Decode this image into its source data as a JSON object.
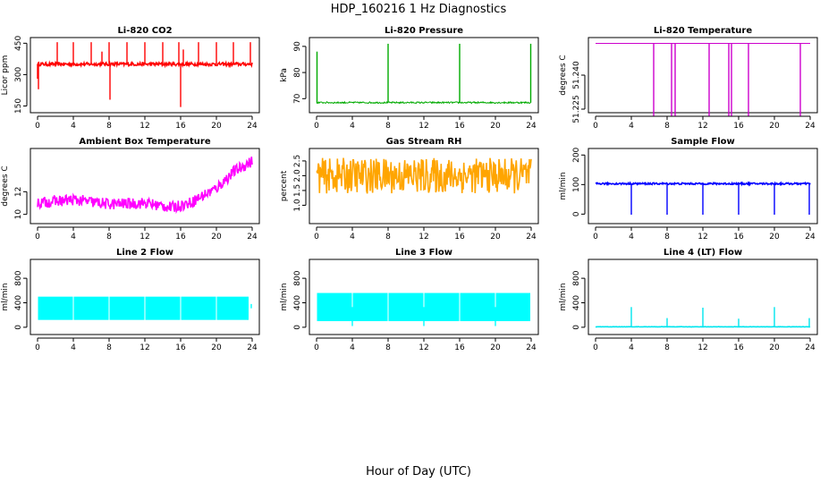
{
  "figure": {
    "title": "HDP_160216  1 Hz Diagnostics",
    "xlabel": "Hour of Day (UTC)"
  },
  "chart_data": [
    {
      "type": "line",
      "title": "Li-820 CO2",
      "ylabel": "Licor ppm",
      "color": "#ff0000",
      "xlim": [
        0,
        24
      ],
      "ylim": [
        135,
        460
      ],
      "xticks": [
        "0",
        "4",
        "8",
        "12",
        "16",
        "20",
        "24"
      ],
      "yticks": [
        "150",
        "300",
        "450"
      ],
      "baseline": 350,
      "noise": 8,
      "segments": [
        [
          0,
          24
        ]
      ],
      "spikes": [
        {
          "x": 0.0,
          "y": 280
        },
        {
          "x": 0.1,
          "y": 230
        },
        {
          "x": 2.2,
          "y": 455
        },
        {
          "x": 4.0,
          "y": 455
        },
        {
          "x": 6.0,
          "y": 455
        },
        {
          "x": 7.2,
          "y": 410
        },
        {
          "x": 8.0,
          "y": 455
        },
        {
          "x": 8.1,
          "y": 180
        },
        {
          "x": 10.0,
          "y": 455
        },
        {
          "x": 12.0,
          "y": 455
        },
        {
          "x": 14.0,
          "y": 455
        },
        {
          "x": 15.8,
          "y": 455
        },
        {
          "x": 16.0,
          "y": 145
        },
        {
          "x": 16.3,
          "y": 420
        },
        {
          "x": 18.0,
          "y": 455
        },
        {
          "x": 20.0,
          "y": 455
        },
        {
          "x": 21.9,
          "y": 455
        },
        {
          "x": 23.8,
          "y": 455
        }
      ]
    },
    {
      "type": "line",
      "title": "Li-820 Pressure",
      "ylabel": "kPa",
      "color": "#00aa00",
      "xlim": [
        0,
        24
      ],
      "ylim": [
        66,
        92
      ],
      "xticks": [
        "0",
        "4",
        "8",
        "12",
        "16",
        "20",
        "24"
      ],
      "yticks": [
        "70",
        "80",
        "90"
      ],
      "baseline": 68.5,
      "noise": 0.3,
      "segments": [
        [
          0,
          24
        ]
      ],
      "spikes": [
        {
          "x": 0.05,
          "y": 88
        },
        {
          "x": 8.0,
          "y": 91
        },
        {
          "x": 16.0,
          "y": 91
        },
        {
          "x": 23.95,
          "y": 91
        }
      ]
    },
    {
      "type": "line",
      "title": "Li-820 Temperature",
      "ylabel": "degrees C",
      "color": "#cc00cc",
      "xlim": [
        0,
        24
      ],
      "ylim": [
        51.225,
        51.255
      ],
      "xticks": [
        "0",
        "4",
        "8",
        "12",
        "16",
        "20",
        "24"
      ],
      "yticks": [
        "51.225",
        "51.240"
      ],
      "baseline": 51.254,
      "noise": 0,
      "segments": [
        [
          0,
          24
        ]
      ],
      "spikes": [
        {
          "x": 6.5,
          "y": 51.222
        },
        {
          "x": 8.5,
          "y": 51.222
        },
        {
          "x": 8.9,
          "y": 51.222
        },
        {
          "x": 12.7,
          "y": 51.222
        },
        {
          "x": 14.9,
          "y": 51.222
        },
        {
          "x": 15.2,
          "y": 51.222
        },
        {
          "x": 17.1,
          "y": 51.222
        },
        {
          "x": 22.9,
          "y": 51.222
        }
      ]
    },
    {
      "type": "line",
      "title": "Ambient Box Temperature",
      "ylabel": "degrees C",
      "color": "#ff00ff",
      "xlim": [
        0,
        24
      ],
      "ylim": [
        9.5,
        15.5
      ],
      "xticks": [
        "0",
        "4",
        "8",
        "12",
        "16",
        "20",
        "24"
      ],
      "yticks": [
        "10",
        "12"
      ],
      "noise": 0.5,
      "segments": [
        [
          0,
          24
        ]
      ],
      "trend": [
        [
          0,
          11.0
        ],
        [
          4,
          11.3
        ],
        [
          8,
          10.9
        ],
        [
          12,
          11.0
        ],
        [
          15,
          10.6
        ],
        [
          17,
          11.0
        ],
        [
          20,
          12.3
        ],
        [
          22,
          13.8
        ],
        [
          24,
          14.7
        ]
      ]
    },
    {
      "type": "line",
      "title": "Gas Stream RH",
      "ylabel": "percent",
      "color": "#ffa500",
      "xlim": [
        0,
        24
      ],
      "ylim": [
        0.5,
        2.8
      ],
      "xticks": [
        "0",
        "4",
        "8",
        "12",
        "16",
        "20",
        "24"
      ],
      "yticks": [
        "1.0",
        "1.5",
        "2.0",
        "2.5"
      ],
      "baseline": 2.0,
      "noise": 0.6,
      "segments": [
        [
          0,
          24
        ]
      ],
      "spikes": []
    },
    {
      "type": "line",
      "title": "Sample Flow",
      "ylabel": "ml/min",
      "color": "#0000ff",
      "xlim": [
        0,
        24
      ],
      "ylim": [
        -20,
        210
      ],
      "xticks": [
        "0",
        "4",
        "8",
        "12",
        "16",
        "20",
        "24"
      ],
      "yticks": [
        "0",
        "100",
        "200"
      ],
      "baseline": 103,
      "noise": 3,
      "segments": [
        [
          0,
          24
        ]
      ],
      "spikes": [
        {
          "x": 4.0,
          "y": -2
        },
        {
          "x": 8.0,
          "y": -2
        },
        {
          "x": 12.0,
          "y": -2
        },
        {
          "x": 16.0,
          "y": -2
        },
        {
          "x": 20.0,
          "y": -2
        },
        {
          "x": 23.9,
          "y": -2
        }
      ]
    },
    {
      "type": "area",
      "title": "Line 2 Flow",
      "ylabel": "ml/min",
      "color": "#00ffff",
      "xlim": [
        0,
        24
      ],
      "ylim": [
        -60,
        1050
      ],
      "xticks": [
        "0",
        "4",
        "8",
        "12",
        "16",
        "20",
        "24"
      ],
      "yticks": [
        "0",
        "400",
        "800"
      ],
      "band": [
        120,
        500
      ],
      "segments": [
        [
          0.05,
          3.95
        ],
        [
          4.05,
          7.95
        ],
        [
          8.05,
          11.95
        ],
        [
          12.05,
          15.95
        ],
        [
          16.05,
          19.95
        ],
        [
          20.05,
          23.6
        ]
      ],
      "spikes": [
        {
          "x": 23.9,
          "y": 380
        }
      ]
    },
    {
      "type": "area",
      "title": "Line 3 Flow",
      "ylabel": "ml/min",
      "color": "#00ffff",
      "xlim": [
        0,
        24
      ],
      "ylim": [
        -60,
        1050
      ],
      "xticks": [
        "0",
        "4",
        "8",
        "12",
        "16",
        "20",
        "24"
      ],
      "yticks": [
        "0",
        "400",
        "800"
      ],
      "band": [
        100,
        560
      ],
      "segments": [
        [
          0.05,
          3.95
        ],
        [
          4.05,
          7.95
        ],
        [
          8.05,
          11.95
        ],
        [
          12.05,
          15.95
        ],
        [
          16.05,
          19.95
        ],
        [
          20.05,
          23.9
        ]
      ],
      "spikes": [
        {
          "x": 4.0,
          "y": 20
        },
        {
          "x": 12.0,
          "y": 20
        },
        {
          "x": 20.0,
          "y": 20
        }
      ]
    },
    {
      "type": "line",
      "title": "Line 4 (LT) Flow",
      "ylabel": "ml/min",
      "color": "#00e5ee",
      "xlim": [
        0,
        24
      ],
      "ylim": [
        -60,
        1050
      ],
      "xticks": [
        "0",
        "4",
        "8",
        "12",
        "16",
        "20",
        "24"
      ],
      "yticks": [
        "0",
        "400",
        "800"
      ],
      "baseline": 8,
      "noise": 2,
      "segments": [
        [
          0,
          24
        ]
      ],
      "spikes": [
        {
          "x": 4.0,
          "y": 330
        },
        {
          "x": 8.0,
          "y": 150
        },
        {
          "x": 12.0,
          "y": 320
        },
        {
          "x": 16.0,
          "y": 140
        },
        {
          "x": 20.0,
          "y": 330
        },
        {
          "x": 23.9,
          "y": 150
        }
      ]
    }
  ]
}
